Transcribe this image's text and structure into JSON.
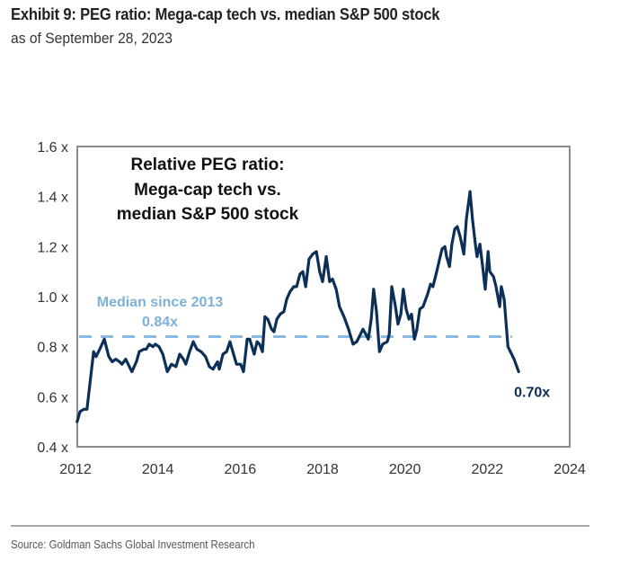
{
  "header": {
    "title": "Exhibit 9: PEG ratio: Mega-cap tech vs. median S&P 500 stock",
    "subtitle": "as of September 28, 2023"
  },
  "footer": {
    "source": "Source: Goldman Sachs Global Investment Research"
  },
  "colors": {
    "line": "#0b2f57",
    "median": "#8dbbe0",
    "median_text": "#7eb1d8",
    "axis_text": "#333333",
    "frame": "#8c8c8c"
  },
  "chart_data": {
    "type": "line",
    "title": "Relative PEG ratio: Mega-cap tech vs. median S&P 500 stock",
    "inset_title_lines": [
      "Relative PEG ratio:",
      "Mega-cap tech vs.",
      "median S&P 500 stock"
    ],
    "xlabel": "",
    "ylabel": "",
    "xlim": [
      2012,
      2024
    ],
    "ylim": [
      0.4,
      1.6
    ],
    "x_ticks": [
      2012,
      2014,
      2016,
      2018,
      2020,
      2022,
      2024
    ],
    "x_tick_labels": [
      "2012",
      "2014",
      "2016",
      "2018",
      "2020",
      "2022",
      "2024"
    ],
    "y_ticks": [
      0.4,
      0.6,
      0.8,
      1.0,
      1.2,
      1.4,
      1.6
    ],
    "y_tick_labels": [
      "0.4 x",
      "0.6 x",
      "0.8 x",
      "1.0 x",
      "1.2 x",
      "1.4 x",
      "1.6 x"
    ],
    "grid": false,
    "legend": "none",
    "series": [
      {
        "name": "Relative PEG ratio",
        "x": [
          2012.04,
          2012.11,
          2012.2,
          2012.28,
          2012.44,
          2012.5,
          2012.59,
          2012.7,
          2012.81,
          2012.89,
          2012.98,
          2013.07,
          2013.13,
          2013.22,
          2013.31,
          2013.37,
          2013.48,
          2013.55,
          2013.66,
          2013.72,
          2013.79,
          2013.88,
          2013.94,
          2014.03,
          2014.12,
          2014.23,
          2014.33,
          2014.44,
          2014.53,
          2014.62,
          2014.68,
          2014.77,
          2014.86,
          2014.95,
          2015.05,
          2015.16,
          2015.25,
          2015.34,
          2015.45,
          2015.49,
          2015.58,
          2015.67,
          2015.75,
          2015.82,
          2015.91,
          2016.01,
          2016.08,
          2016.17,
          2016.23,
          2016.34,
          2016.41,
          2016.47,
          2016.54,
          2016.6,
          2016.67,
          2016.76,
          2016.82,
          2016.89,
          2016.97,
          2017.06,
          2017.13,
          2017.21,
          2017.3,
          2017.37,
          2017.45,
          2017.52,
          2017.59,
          2017.67,
          2017.76,
          2017.85,
          2017.93,
          2018.0,
          2018.09,
          2018.17,
          2018.24,
          2018.33,
          2018.41,
          2018.52,
          2018.63,
          2018.74,
          2018.83,
          2018.92,
          2018.98,
          2019.05,
          2019.11,
          2019.18,
          2019.24,
          2019.31,
          2019.38,
          2019.46,
          2019.57,
          2019.62,
          2019.68,
          2019.77,
          2019.83,
          2019.9,
          2019.96,
          2020.03,
          2020.1,
          2020.16,
          2020.23,
          2020.29,
          2020.36,
          2020.44,
          2020.55,
          2020.62,
          2020.68,
          2020.77,
          2020.84,
          2020.9,
          2020.97,
          2021.01,
          2021.08,
          2021.14,
          2021.21,
          2021.27,
          2021.34,
          2021.43,
          2021.49,
          2021.58,
          2021.64,
          2021.71,
          2021.75,
          2021.82,
          2021.88,
          2021.95,
          2022.02,
          2022.06,
          2022.15,
          2022.21,
          2022.3,
          2022.34,
          2022.41,
          2022.5,
          2022.56,
          2022.65,
          2022.76
        ],
        "values": [
          0.5,
          0.54,
          0.55,
          0.55,
          0.78,
          0.76,
          0.79,
          0.83,
          0.76,
          0.74,
          0.75,
          0.74,
          0.73,
          0.75,
          0.72,
          0.7,
          0.74,
          0.78,
          0.79,
          0.79,
          0.81,
          0.8,
          0.81,
          0.8,
          0.77,
          0.7,
          0.73,
          0.72,
          0.77,
          0.75,
          0.73,
          0.78,
          0.82,
          0.79,
          0.78,
          0.76,
          0.72,
          0.71,
          0.74,
          0.71,
          0.77,
          0.78,
          0.82,
          0.78,
          0.73,
          0.73,
          0.7,
          0.83,
          0.83,
          0.77,
          0.82,
          0.81,
          0.78,
          0.92,
          0.91,
          0.87,
          0.86,
          0.91,
          0.93,
          0.94,
          0.99,
          1.02,
          1.04,
          1.04,
          1.09,
          1.1,
          1.04,
          1.15,
          1.17,
          1.18,
          1.1,
          1.06,
          1.16,
          1.06,
          1.07,
          1.03,
          0.96,
          0.92,
          0.87,
          0.81,
          0.82,
          0.85,
          0.87,
          0.85,
          0.83,
          0.91,
          1.03,
          0.94,
          0.78,
          0.81,
          0.82,
          0.85,
          1.04,
          0.96,
          0.89,
          0.93,
          1.03,
          0.95,
          0.91,
          0.93,
          0.83,
          0.87,
          0.95,
          0.96,
          1.01,
          1.05,
          1.04,
          1.1,
          1.15,
          1.19,
          1.2,
          1.16,
          1.12,
          1.21,
          1.27,
          1.28,
          1.24,
          1.17,
          1.31,
          1.42,
          1.31,
          1.21,
          1.16,
          1.21,
          1.13,
          1.03,
          1.18,
          1.1,
          1.08,
          1.04,
          0.96,
          1.04,
          0.99,
          0.8,
          0.78,
          0.75,
          0.7
        ]
      }
    ],
    "reference_lines": [
      {
        "name": "Median since 2013",
        "value": 0.84,
        "x_start": 2012,
        "x_end": 2022.6,
        "style": "dashed",
        "label_lines": [
          "Median since 2013",
          "0.84x"
        ]
      }
    ],
    "annotations": [
      {
        "text": "0.70x",
        "x": 2022.76,
        "y": 0.7
      }
    ]
  }
}
